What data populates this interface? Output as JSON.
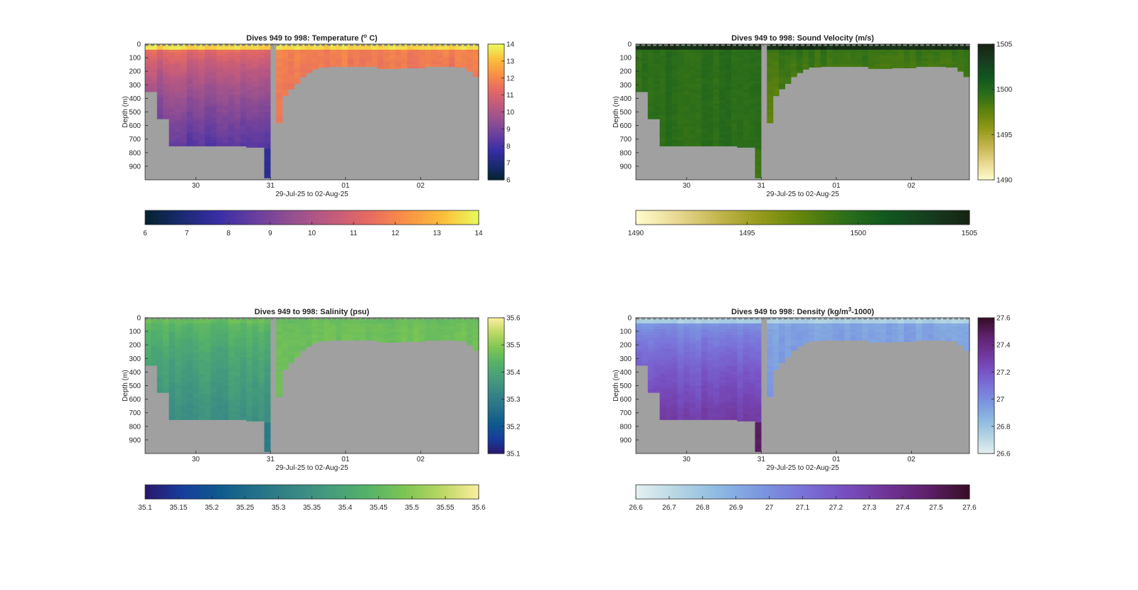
{
  "figure": {
    "background": "#ffffff",
    "missing_color": "#a0a0a0"
  },
  "chart_data": [
    {
      "type": "heatmap",
      "title": "Dives 949 to 998: Temperature (° C)",
      "title_parts": [
        "Dives 949 to 998: Temperature (",
        "o",
        " C)"
      ],
      "ylabel": "Depth (m)",
      "xlabel": "29-Jul-25 to 02-Aug-25",
      "xticklabels": [
        "30",
        "31",
        "01",
        "02"
      ],
      "yticklabels": [
        "0",
        "100",
        "200",
        "300",
        "400",
        "500",
        "600",
        "700",
        "800",
        "900"
      ],
      "ylim": [
        0,
        1000
      ],
      "y_reversed": true,
      "colormap": "thermal",
      "clim": [
        6,
        14
      ],
      "colorbar_ticks": [
        "6",
        "7",
        "8",
        "9",
        "10",
        "11",
        "12",
        "13",
        "14"
      ],
      "colorbar_values": [
        6,
        7,
        8,
        9,
        10,
        11,
        12,
        13,
        14
      ],
      "horizontal_colorbar_ticks": [
        "6",
        "7",
        "8",
        "9",
        "10",
        "11",
        "12",
        "13",
        "14"
      ],
      "horizontal_colorbar_values": [
        6,
        7,
        8,
        9,
        10,
        11,
        12,
        13,
        14
      ],
      "surface_value": 13.5,
      "deep_value": 8.2,
      "tail_value": 11.3
    },
    {
      "type": "heatmap",
      "title": "Dives 949 to 998: Sound Velocity (m/s)",
      "title_parts": [
        "Dives 949 to 998: Sound Velocity (m/s)"
      ],
      "ylabel": "Depth (m)",
      "xlabel": "29-Jul-25 to 02-Aug-25",
      "xticklabels": [
        "30",
        "31",
        "01",
        "02"
      ],
      "yticklabels": [
        "0",
        "100",
        "200",
        "300",
        "400",
        "500",
        "600",
        "700",
        "800",
        "900"
      ],
      "ylim": [
        0,
        1000
      ],
      "y_reversed": true,
      "colormap": "speed",
      "clim": [
        1490,
        1505
      ],
      "colorbar_ticks": [
        "1490",
        "1495",
        "1500",
        "1505"
      ],
      "colorbar_values": [
        1490,
        1495,
        1500,
        1505
      ],
      "horizontal_colorbar_ticks": [
        "1490",
        "1495",
        "1500",
        "1505"
      ],
      "horizontal_colorbar_values": [
        1490,
        1495,
        1500,
        1505
      ],
      "surface_value": 1504.2,
      "deep_value": 1499.5,
      "tail_value": 1497.5
    },
    {
      "type": "heatmap",
      "title": "Dives 949 to 998: Salinity (psu)",
      "title_parts": [
        "Dives 949 to 998: Salinity (psu)"
      ],
      "ylabel": "Depth (m)",
      "xlabel": "29-Jul-25 to 02-Aug-25",
      "xticklabels": [
        "30",
        "31",
        "01",
        "02"
      ],
      "yticklabels": [
        "0",
        "100",
        "200",
        "300",
        "400",
        "500",
        "600",
        "700",
        "800",
        "900"
      ],
      "ylim": [
        0,
        1000
      ],
      "y_reversed": true,
      "colormap": "haline",
      "clim": [
        35.1,
        35.6
      ],
      "colorbar_ticks": [
        "35.1",
        "35.2",
        "35.3",
        "35.4",
        "35.5",
        "35.6"
      ],
      "colorbar_values": [
        35.1,
        35.2,
        35.3,
        35.4,
        35.5,
        35.6
      ],
      "horizontal_colorbar_ticks": [
        "35.1",
        "35.15",
        "35.2",
        "35.25",
        "35.3",
        "35.35",
        "35.4",
        "35.45",
        "35.5",
        "35.55",
        "35.6"
      ],
      "horizontal_colorbar_values": [
        35.1,
        35.15,
        35.2,
        35.25,
        35.3,
        35.35,
        35.4,
        35.45,
        35.5,
        35.55,
        35.6
      ],
      "surface_value": 35.46,
      "deep_value": 35.34,
      "tail_value": 35.47
    },
    {
      "type": "heatmap",
      "title": "Dives 949 to 998: Density (kg/m³-1000)",
      "title_parts": [
        "Dives 949 to 998: Density (kg/m",
        "3",
        "-1000)"
      ],
      "ylabel": "Depth (m)",
      "xlabel": "29-Jul-25 to 02-Aug-25",
      "xticklabels": [
        "30",
        "31",
        "01",
        "02"
      ],
      "yticklabels": [
        "0",
        "100",
        "200",
        "300",
        "400",
        "500",
        "600",
        "700",
        "800",
        "900"
      ],
      "ylim": [
        0,
        1000
      ],
      "y_reversed": true,
      "colormap": "dense",
      "clim": [
        26.6,
        27.6
      ],
      "colorbar_ticks": [
        "26.6",
        "26.8",
        "27",
        "27.2",
        "27.4",
        "27.6"
      ],
      "colorbar_values": [
        26.6,
        26.8,
        27.0,
        27.2,
        27.4,
        27.6
      ],
      "horizontal_colorbar_ticks": [
        "26.6",
        "26.7",
        "26.8",
        "26.9",
        "27",
        "27.1",
        "27.2",
        "27.3",
        "27.4",
        "27.5",
        "27.6"
      ],
      "horizontal_colorbar_values": [
        26.6,
        26.7,
        26.8,
        26.9,
        27.0,
        27.1,
        27.2,
        27.3,
        27.4,
        27.5,
        27.6
      ],
      "surface_value": 26.75,
      "deep_value": 27.32,
      "tail_value": 26.98
    }
  ],
  "colormaps": {
    "thermal": [
      "#04232e",
      "#1a2a72",
      "#3a2ea6",
      "#6a3f9e",
      "#965090",
      "#c05a7e",
      "#e56a62",
      "#f98f45",
      "#fcbd3b",
      "#e8fa5b"
    ],
    "speed": [
      "#fffdcd",
      "#e8d891",
      "#c3b54e",
      "#949a1a",
      "#62840c",
      "#2e6f19",
      "#11581f",
      "#173e1f",
      "#172313"
    ],
    "haline": [
      "#2a186c",
      "#173d9c",
      "#0f5a8e",
      "#237189",
      "#378685",
      "#459c7c",
      "#55b269",
      "#7cc553",
      "#bad763",
      "#fdeea0"
    ],
    "dense": [
      "#e6f1f1",
      "#b5d5e2",
      "#8db9e1",
      "#7b97e0",
      "#7a72d9",
      "#774fc1",
      "#703497",
      "#5e1f6a",
      "#360e24"
    ]
  }
}
